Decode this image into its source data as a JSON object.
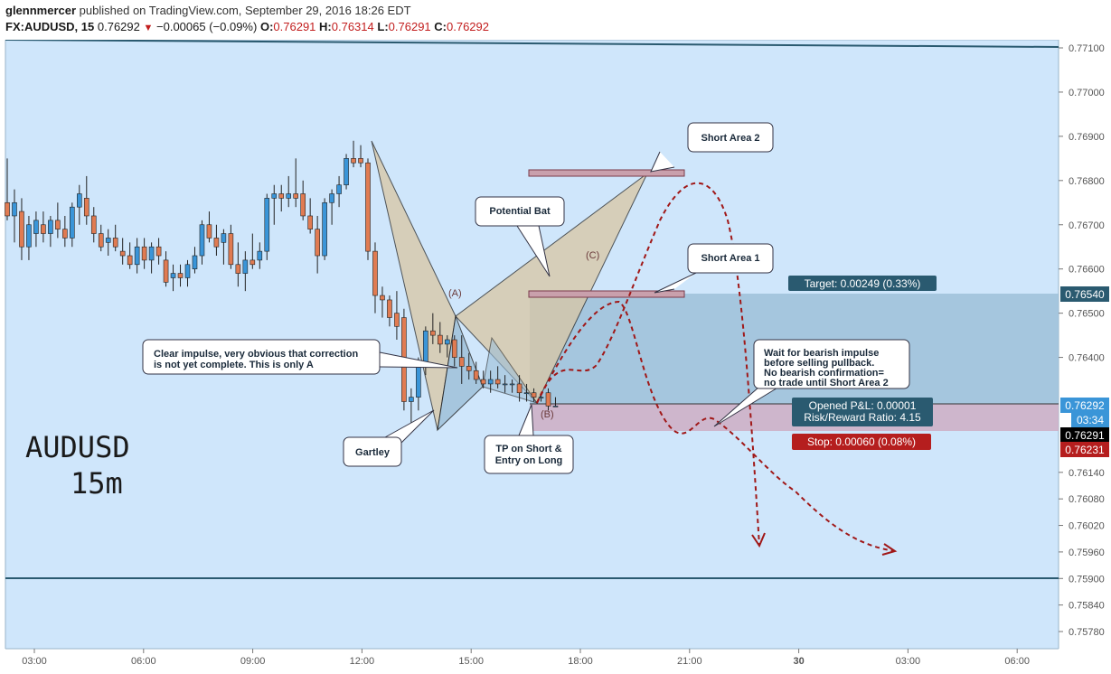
{
  "header": {
    "author": "glennmercer",
    "published_text": "published on TradingView.com, September 29, 2016 18:26 EDT",
    "symbol": "FX:AUDUSD, 15",
    "last": "0.76292",
    "change": "−0.00065 (−0.09%)",
    "o_label": "O:",
    "o_value": "0.76291",
    "h_label": "H:",
    "h_value": "0.76314",
    "l_label": "L:",
    "l_value": "0.76291",
    "c_label": "C:",
    "c_value": "0.76292"
  },
  "colors": {
    "background": "#cfe6fb",
    "bull_candle": "#3a95d8",
    "bear_candle": "#e07b52",
    "pattern_fill": "#d9c7a4",
    "target_zone": "#9dbfd8",
    "stop_zone": "#cdb0c6",
    "accent_dark": "#2a5a70",
    "stop_red": "#b51e1e",
    "projection_red": "#a01818"
  },
  "watermark": {
    "line1": "AUDUSD",
    "line2": "15m"
  },
  "chart_data": {
    "type": "candlestick",
    "symbol": "FX:AUDUSD",
    "timeframe": "15",
    "ylim": [
      0.7575,
      0.7714
    ],
    "price_ticks": [
      "0.77100",
      "0.77000",
      "0.76900",
      "0.76800",
      "0.76700",
      "0.76600",
      "0.76500",
      "0.76400",
      "0.76140",
      "0.76080",
      "0.76020",
      "0.75960",
      "0.75900",
      "0.75840",
      "0.75780"
    ],
    "time_ticks": [
      "03:00",
      "06:00",
      "09:00",
      "12:00",
      "15:00",
      "18:00",
      "21:00",
      "30",
      "03:00",
      "06:00"
    ],
    "candles": [
      {
        "o": 0.7675,
        "h": 0.7685,
        "l": 0.7671,
        "c": 0.7672
      },
      {
        "o": 0.7672,
        "h": 0.7678,
        "l": 0.7666,
        "c": 0.7675
      },
      {
        "o": 0.7673,
        "h": 0.7676,
        "l": 0.7662,
        "c": 0.7665
      },
      {
        "o": 0.7665,
        "h": 0.7672,
        "l": 0.7662,
        "c": 0.767
      },
      {
        "o": 0.7668,
        "h": 0.7673,
        "l": 0.7665,
        "c": 0.7671
      },
      {
        "o": 0.767,
        "h": 0.7673,
        "l": 0.7666,
        "c": 0.7668
      },
      {
        "o": 0.7668,
        "h": 0.7672,
        "l": 0.7665,
        "c": 0.7671
      },
      {
        "o": 0.7671,
        "h": 0.7675,
        "l": 0.7667,
        "c": 0.7669
      },
      {
        "o": 0.7669,
        "h": 0.7672,
        "l": 0.7665,
        "c": 0.7667
      },
      {
        "o": 0.7667,
        "h": 0.7675,
        "l": 0.7665,
        "c": 0.7674
      },
      {
        "o": 0.7674,
        "h": 0.7679,
        "l": 0.767,
        "c": 0.7677
      },
      {
        "o": 0.7676,
        "h": 0.7681,
        "l": 0.767,
        "c": 0.7672
      },
      {
        "o": 0.7672,
        "h": 0.7674,
        "l": 0.7666,
        "c": 0.7668
      },
      {
        "o": 0.7668,
        "h": 0.767,
        "l": 0.7664,
        "c": 0.7665
      },
      {
        "o": 0.7666,
        "h": 0.7669,
        "l": 0.7663,
        "c": 0.7667
      },
      {
        "o": 0.7667,
        "h": 0.767,
        "l": 0.7664,
        "c": 0.7665
      },
      {
        "o": 0.7664,
        "h": 0.7667,
        "l": 0.7661,
        "c": 0.7663
      },
      {
        "o": 0.7663,
        "h": 0.7666,
        "l": 0.766,
        "c": 0.7661
      },
      {
        "o": 0.7661,
        "h": 0.7667,
        "l": 0.7659,
        "c": 0.7665
      },
      {
        "o": 0.7665,
        "h": 0.7667,
        "l": 0.766,
        "c": 0.7662
      },
      {
        "o": 0.7662,
        "h": 0.7666,
        "l": 0.7659,
        "c": 0.7665
      },
      {
        "o": 0.7665,
        "h": 0.7667,
        "l": 0.7661,
        "c": 0.7663
      },
      {
        "o": 0.7662,
        "h": 0.7664,
        "l": 0.7656,
        "c": 0.7657
      },
      {
        "o": 0.7658,
        "h": 0.7661,
        "l": 0.7655,
        "c": 0.7659
      },
      {
        "o": 0.7659,
        "h": 0.7661,
        "l": 0.7656,
        "c": 0.7658
      },
      {
        "o": 0.7658,
        "h": 0.7662,
        "l": 0.7656,
        "c": 0.7661
      },
      {
        "o": 0.766,
        "h": 0.7665,
        "l": 0.7659,
        "c": 0.7663
      },
      {
        "o": 0.7663,
        "h": 0.7671,
        "l": 0.7661,
        "c": 0.767
      },
      {
        "o": 0.767,
        "h": 0.7673,
        "l": 0.7666,
        "c": 0.7667
      },
      {
        "o": 0.7667,
        "h": 0.767,
        "l": 0.7663,
        "c": 0.7665
      },
      {
        "o": 0.7666,
        "h": 0.7669,
        "l": 0.7661,
        "c": 0.7668
      },
      {
        "o": 0.7668,
        "h": 0.767,
        "l": 0.766,
        "c": 0.7661
      },
      {
        "o": 0.7661,
        "h": 0.7666,
        "l": 0.7656,
        "c": 0.7659
      },
      {
        "o": 0.7659,
        "h": 0.7664,
        "l": 0.7655,
        "c": 0.7662
      },
      {
        "o": 0.7662,
        "h": 0.7668,
        "l": 0.766,
        "c": 0.7661
      },
      {
        "o": 0.7662,
        "h": 0.7666,
        "l": 0.766,
        "c": 0.7664
      },
      {
        "o": 0.7664,
        "h": 0.7677,
        "l": 0.7662,
        "c": 0.7676
      },
      {
        "o": 0.7676,
        "h": 0.7679,
        "l": 0.767,
        "c": 0.7677
      },
      {
        "o": 0.7677,
        "h": 0.7679,
        "l": 0.7673,
        "c": 0.7676
      },
      {
        "o": 0.7676,
        "h": 0.7681,
        "l": 0.7674,
        "c": 0.7677
      },
      {
        "o": 0.7677,
        "h": 0.7685,
        "l": 0.7674,
        "c": 0.7676
      },
      {
        "o": 0.7677,
        "h": 0.768,
        "l": 0.7671,
        "c": 0.7672
      },
      {
        "o": 0.7672,
        "h": 0.7676,
        "l": 0.7668,
        "c": 0.7669
      },
      {
        "o": 0.7669,
        "h": 0.7672,
        "l": 0.7659,
        "c": 0.7663
      },
      {
        "o": 0.7663,
        "h": 0.7676,
        "l": 0.7662,
        "c": 0.7675
      },
      {
        "o": 0.7675,
        "h": 0.7678,
        "l": 0.767,
        "c": 0.7677
      },
      {
        "o": 0.7677,
        "h": 0.7681,
        "l": 0.7674,
        "c": 0.7679
      },
      {
        "o": 0.7679,
        "h": 0.7686,
        "l": 0.7678,
        "c": 0.7685
      },
      {
        "o": 0.7685,
        "h": 0.7689,
        "l": 0.7683,
        "c": 0.7684
      },
      {
        "o": 0.7685,
        "h": 0.7688,
        "l": 0.7683,
        "c": 0.7684
      },
      {
        "o": 0.7684,
        "h": 0.7685,
        "l": 0.7662,
        "c": 0.7664
      },
      {
        "o": 0.7664,
        "h": 0.7666,
        "l": 0.765,
        "c": 0.7654
      },
      {
        "o": 0.7654,
        "h": 0.7656,
        "l": 0.7649,
        "c": 0.7653
      },
      {
        "o": 0.7653,
        "h": 0.7654,
        "l": 0.7647,
        "c": 0.7649
      },
      {
        "o": 0.765,
        "h": 0.7655,
        "l": 0.7644,
        "c": 0.7647
      },
      {
        "o": 0.7649,
        "h": 0.7651,
        "l": 0.7628,
        "c": 0.763
      },
      {
        "o": 0.763,
        "h": 0.7633,
        "l": 0.7625,
        "c": 0.7631
      },
      {
        "o": 0.7631,
        "h": 0.764,
        "l": 0.7628,
        "c": 0.7638
      },
      {
        "o": 0.7638,
        "h": 0.7647,
        "l": 0.7636,
        "c": 0.7646
      },
      {
        "o": 0.7646,
        "h": 0.765,
        "l": 0.7643,
        "c": 0.7645
      },
      {
        "o": 0.7645,
        "h": 0.7648,
        "l": 0.7641,
        "c": 0.7643
      },
      {
        "o": 0.7643,
        "h": 0.7645,
        "l": 0.764,
        "c": 0.7644
      },
      {
        "o": 0.7644,
        "h": 0.7645,
        "l": 0.7638,
        "c": 0.764
      },
      {
        "o": 0.764,
        "h": 0.7645,
        "l": 0.7634,
        "c": 0.7638
      },
      {
        "o": 0.7638,
        "h": 0.7641,
        "l": 0.7635,
        "c": 0.7637
      },
      {
        "o": 0.7637,
        "h": 0.7639,
        "l": 0.7634,
        "c": 0.7635
      },
      {
        "o": 0.7635,
        "h": 0.7637,
        "l": 0.7633,
        "c": 0.7634
      },
      {
        "o": 0.7634,
        "h": 0.7637,
        "l": 0.7632,
        "c": 0.7635
      },
      {
        "o": 0.7635,
        "h": 0.7638,
        "l": 0.7633,
        "c": 0.7634
      },
      {
        "o": 0.7634,
        "h": 0.7636,
        "l": 0.7632,
        "c": 0.7634
      },
      {
        "o": 0.7634,
        "h": 0.7635,
        "l": 0.7632,
        "c": 0.7634
      },
      {
        "o": 0.7634,
        "h": 0.7636,
        "l": 0.763,
        "c": 0.7632
      },
      {
        "o": 0.7632,
        "h": 0.7634,
        "l": 0.763,
        "c": 0.7632
      },
      {
        "o": 0.7632,
        "h": 0.7633,
        "l": 0.763,
        "c": 0.7631
      },
      {
        "o": 0.7631,
        "h": 0.7632,
        "l": 0.763,
        "c": 0.7631
      },
      {
        "o": 0.7632,
        "h": 0.7633,
        "l": 0.7628,
        "c": 0.7629
      },
      {
        "o": 0.7629,
        "h": 0.7631,
        "l": 0.7629,
        "c": 0.7629
      }
    ],
    "levels": {
      "upper_line": 0.771,
      "short_area_2": 0.7681,
      "target": 0.7654,
      "entry": 0.76292,
      "last_close": 0.76291,
      "stop": 0.76231,
      "lower_line": 0.759
    },
    "tags": {
      "price_65": "0.76540",
      "price_last": "0.76292",
      "countdown": "03:34",
      "price_close": "0.76291",
      "price_stop": "0.76231"
    },
    "position": {
      "target": "Target: 0.00249 (0.33%)",
      "pnl": "Opened P&L: 0.00001",
      "rr": "Risk/Reward Ratio: 4.15",
      "stop": "Stop: 0.00060 (0.08%)"
    },
    "pattern_labels": {
      "A": "(A)",
      "B": "(B)",
      "C": "(C)"
    },
    "callouts": {
      "short_area_2": "Short Area 2",
      "short_area_1": "Short Area 1",
      "potential_bat": "Potential Bat",
      "impulse": [
        "Clear impulse, very obvious that correction",
        "is not yet complete.  This is only A"
      ],
      "gartley": "Gartley",
      "tp_entry": [
        "TP on Short &",
        "Entry on Long"
      ],
      "wait": [
        "Wait for bearish impulse",
        "before selling pullback.",
        "No bearish confirmation=",
        "no trade until Short Area 2"
      ]
    }
  }
}
